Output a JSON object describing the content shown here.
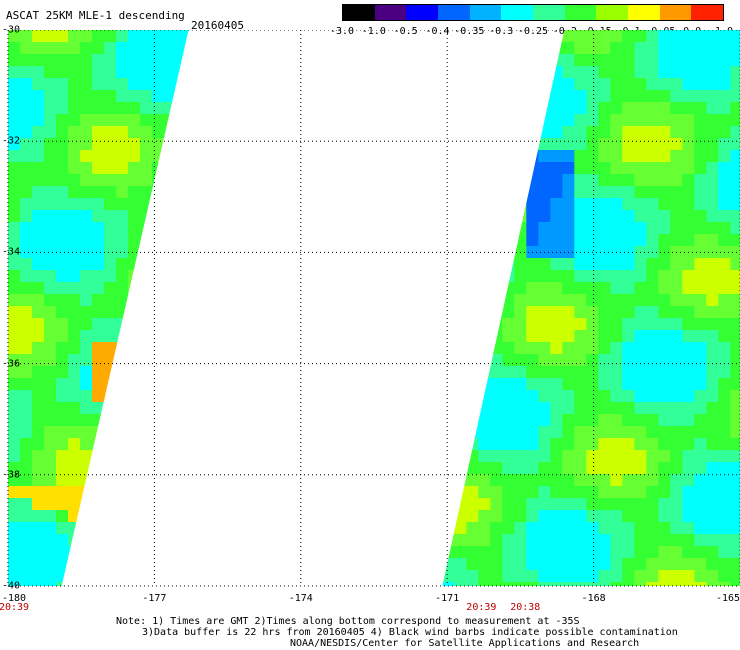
{
  "title": "ASCAT 25KM MLE-1 descending",
  "date": "20160405",
  "colorbar": {
    "labels": [
      "-3.0",
      "-1.0",
      "-0.5",
      "-0.4",
      "-0.35",
      "-0.3",
      "-0.25",
      "-0.2",
      "-0.15",
      "-0.1",
      "-0.05",
      "0.0",
      "1.0"
    ],
    "colors": [
      "#000000",
      "#4b0082",
      "#0000ff",
      "#0066ff",
      "#00b2ff",
      "#00ffff",
      "#33ff99",
      "#33ff33",
      "#99ff00",
      "#ffff00",
      "#ff9900",
      "#ff2200"
    ]
  },
  "map": {
    "lat_labels": [
      "-30",
      "-32",
      "-34",
      "-36",
      "-38",
      "-40"
    ],
    "lon_labels": [
      "-180",
      "-177",
      "-174",
      "-171",
      "-168",
      "-165"
    ],
    "lat_range": [
      -40,
      -30
    ],
    "lon_range": [
      -180,
      -165
    ],
    "grid": true,
    "swaths": [
      {
        "name": "west",
        "edge_lat": [
          -30,
          -40
        ],
        "edge_lon": [
          -176.3,
          -178.9
        ]
      },
      {
        "name": "east",
        "edge_lat": [
          -30,
          -40
        ],
        "edge_lon": [
          -168.6,
          -171.1
        ]
      }
    ]
  },
  "time_labels": [
    {
      "text": "20:39",
      "lon": -180
    },
    {
      "text": "20:39",
      "lon": -170.3
    },
    {
      "text": "20:38",
      "lon": -169.4
    }
  ],
  "notes": [
    "Note: 1) Times are GMT 2)Times along bottom correspond to measurement at -35S",
    "3)Data buffer is 22 hrs from 20160405 4) Black wind barbs indicate possible contamination",
    "NOAA/NESDIS/Center for Satellite Applications and Research"
  ]
}
